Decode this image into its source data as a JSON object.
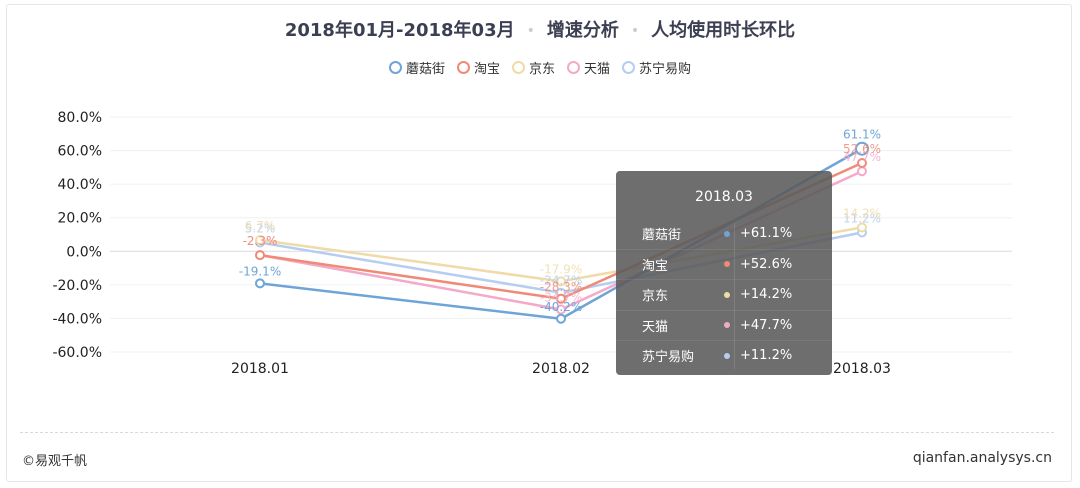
{
  "title": {
    "part1": "2018年01月-2018年03月",
    "sep1": "•",
    "part2": "增速分析",
    "sep2": "•",
    "part3": "人均使用时长环比"
  },
  "footer": {
    "left": "©易观千帆",
    "right": "qianfan.analysys.cn"
  },
  "chart_data": {
    "type": "line",
    "categories": [
      "2018.01",
      "2018.02",
      "2018.03"
    ],
    "ylim": [
      -60,
      80
    ],
    "yticks": [
      80,
      60,
      40,
      20,
      0,
      -20,
      -40,
      -60
    ],
    "ytick_labels": [
      "80.0%",
      "60.0%",
      "40.0%",
      "20.0%",
      "0.0%",
      "-20.0%",
      "-40.0%",
      "-60.0%"
    ],
    "grid": true,
    "legend_position": "top-center",
    "series": [
      {
        "name": "蘑菇街",
        "color": "#6fa4d8",
        "values": [
          -19.1,
          -40.2,
          61.1
        ],
        "labels": [
          "-19.1%",
          "-40.2%",
          "61.1%"
        ]
      },
      {
        "name": "淘宝",
        "color": "#f08a76",
        "values": [
          -2.3,
          -28.3,
          52.6
        ],
        "labels": [
          "-2.3%",
          "-28.3%",
          "52.6%"
        ]
      },
      {
        "name": "京东",
        "color": "#eedba7",
        "values": [
          6.7,
          -17.9,
          14.2
        ],
        "labels": [
          "6.7%",
          "-17.9%",
          "14.2%"
        ]
      },
      {
        "name": "天猫",
        "color": "#f4a9c8",
        "values": [
          -2.3,
          -34.7,
          47.7
        ],
        "labels": [
          "-2.3%",
          "-34.7%",
          "47.7%"
        ]
      },
      {
        "name": "苏宁易购",
        "color": "#b5cdef",
        "values": [
          5.2,
          -24.7,
          11.2
        ],
        "labels": [
          "5.2%",
          "-24.7%",
          "11.2%"
        ]
      }
    ],
    "tooltip": {
      "title": "2018.03",
      "rows": [
        {
          "name": "蘑菇街",
          "value": "+61.1%",
          "color": "#6fa4d8"
        },
        {
          "name": "淘宝",
          "value": "+52.6%",
          "color": "#f08a76"
        },
        {
          "name": "京东",
          "value": "+14.2%",
          "color": "#eedba7"
        },
        {
          "name": "天猫",
          "value": "+47.7%",
          "color": "#f4a9c8"
        },
        {
          "name": "苏宁易购",
          "value": "+11.2%",
          "color": "#b5cdef"
        }
      ]
    }
  }
}
